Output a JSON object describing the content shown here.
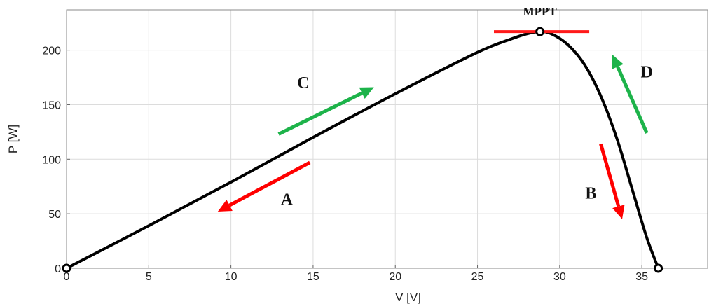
{
  "chart_data": {
    "type": "line",
    "xlabel": "V [V]",
    "ylabel": "P [W]",
    "xlim": [
      0,
      39
    ],
    "ylim": [
      0,
      237
    ],
    "x_ticks": [
      0,
      5,
      10,
      15,
      20,
      25,
      30,
      35
    ],
    "y_ticks": [
      0,
      50,
      100,
      150,
      200
    ],
    "grid": true,
    "line_color": "#000000",
    "series": [
      {
        "x": [
          0,
          5,
          10,
          15,
          20,
          25,
          27,
          28,
          28.8,
          29.5,
          30.5,
          31.5,
          32.5,
          33.5,
          34.5,
          35.3,
          36
        ],
        "y": [
          0,
          39,
          79,
          120,
          160,
          198,
          210,
          215,
          217,
          215,
          205,
          187,
          158,
          118,
          68,
          28,
          0
        ]
      }
    ],
    "markers": [
      {
        "x": 0,
        "y": 0
      },
      {
        "x": 28.8,
        "y": 217
      },
      {
        "x": 36,
        "y": 0
      }
    ],
    "mppt_line": {
      "x0": 26,
      "x1": 31.8,
      "y": 217,
      "color": "#ff1a1a"
    },
    "annotations": [
      {
        "id": "mppt",
        "text": "MPPT",
        "x": 28.8,
        "y": 232
      },
      {
        "id": "A",
        "text": "A",
        "x": 13.4,
        "y": 58
      },
      {
        "id": "B",
        "text": "B",
        "x": 31.9,
        "y": 64
      },
      {
        "id": "C",
        "text": "C",
        "x": 14.4,
        "y": 165
      },
      {
        "id": "D",
        "text": "D",
        "x": 35.3,
        "y": 175
      }
    ],
    "arrows": [
      {
        "id": "arrow-a",
        "color": "#ff0000",
        "from": [
          14.8,
          97
        ],
        "to": [
          9.2,
          52
        ]
      },
      {
        "id": "arrow-b",
        "color": "#ff0000",
        "from": [
          32.5,
          114
        ],
        "to": [
          33.8,
          45
        ]
      },
      {
        "id": "arrow-c",
        "color": "#1db34a",
        "from": [
          12.9,
          123
        ],
        "to": [
          18.7,
          166
        ]
      },
      {
        "id": "arrow-d",
        "color": "#1db34a",
        "from": [
          35.3,
          124
        ],
        "to": [
          33.2,
          196
        ]
      }
    ]
  }
}
